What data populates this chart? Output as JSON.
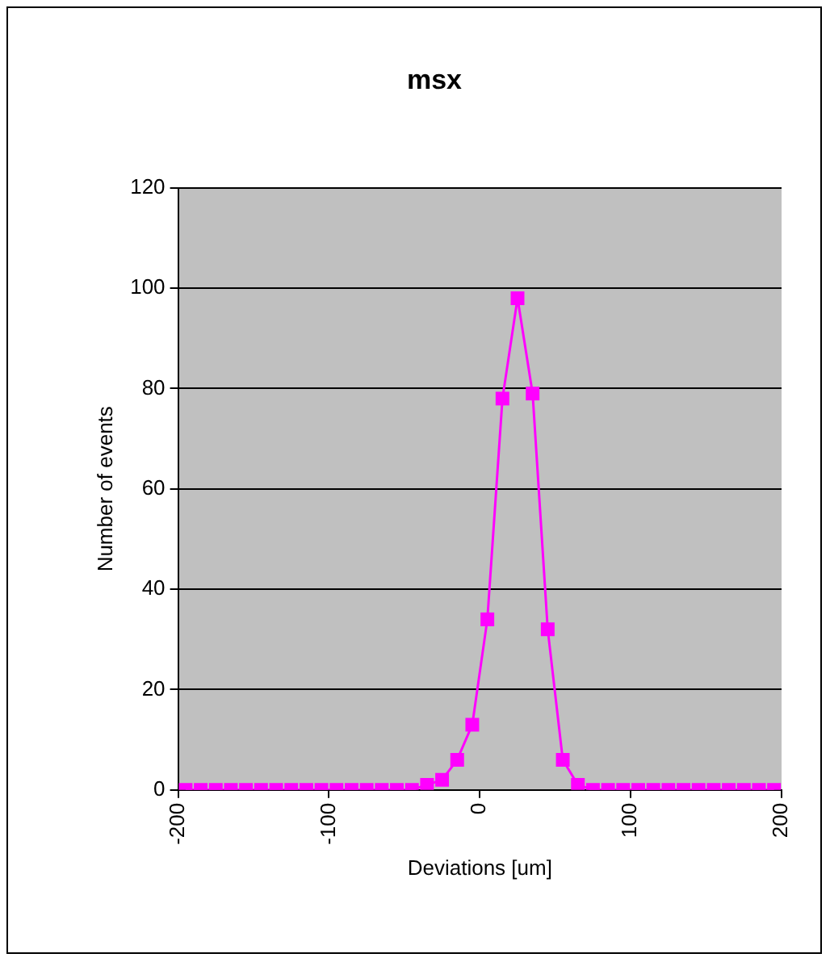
{
  "chart_data": {
    "type": "line",
    "title": "msx",
    "xlabel": "Deviations [um]",
    "ylabel": "Number of events",
    "x": [
      -195,
      -185,
      -175,
      -165,
      -155,
      -145,
      -135,
      -125,
      -115,
      -105,
      -95,
      -85,
      -75,
      -65,
      -55,
      -45,
      -35,
      -25,
      -15,
      -5,
      5,
      15,
      25,
      35,
      45,
      55,
      65,
      75,
      85,
      95,
      105,
      115,
      125,
      135,
      145,
      155,
      165,
      175,
      185,
      195
    ],
    "series": [
      {
        "color": "#ff00ff",
        "values": [
          0,
          0,
          0,
          0,
          0,
          0,
          0,
          0,
          0,
          0,
          0,
          0,
          0,
          0,
          0,
          0,
          1,
          2,
          6,
          13,
          34,
          78,
          98,
          79,
          32,
          6,
          1,
          0,
          0,
          0,
          0,
          0,
          0,
          0,
          0,
          0,
          0,
          0,
          0,
          0
        ]
      }
    ],
    "xlim": [
      -200,
      200
    ],
    "xticks": [
      -200,
      -100,
      0,
      100,
      200
    ],
    "ylim": [
      0,
      120
    ],
    "yticks": [
      0,
      20,
      40,
      60,
      80,
      100,
      120
    ],
    "grid": "y",
    "legend": false,
    "marker": "square",
    "line_style": "solid"
  }
}
